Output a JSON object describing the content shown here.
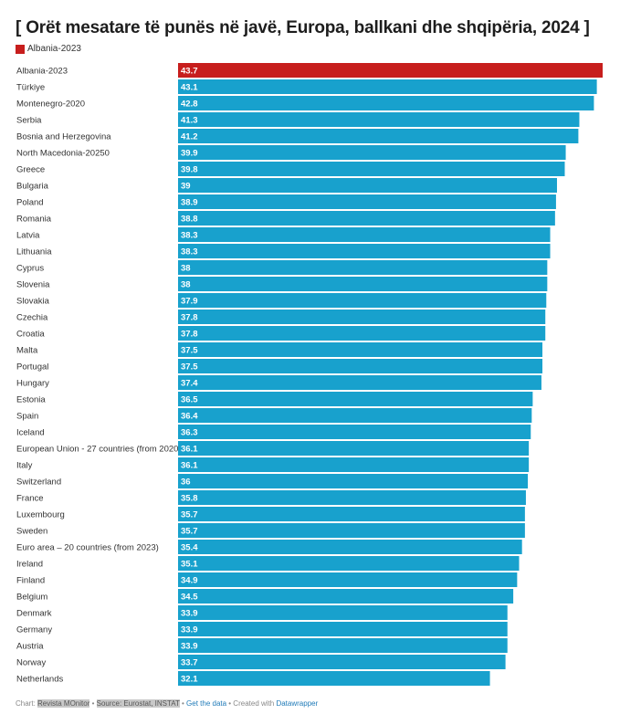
{
  "title": "[ Orët mesatare të punës në javë, Europa, ballkani dhe shqipëria, 2024 ]",
  "legend": [
    {
      "label": "Albania-2023",
      "color": "#c71e1d"
    }
  ],
  "colors": {
    "highlight": "#c71e1d",
    "default": "#18a1cd"
  },
  "chart_data": {
    "type": "bar",
    "orientation": "horizontal",
    "title": "[ Orët mesatare të punës në javë, Europa, ballkani dhe shqipëria, 2024 ]",
    "xlim": [
      0,
      43.7
    ],
    "grid": false,
    "legend_position": "top-left",
    "highlight": "Albania-2023",
    "categories": [
      "Albania-2023",
      "Türkiye",
      "Montenegro-2020",
      "Serbia",
      "Bosnia and Herzegovina",
      "North Macedonia-20250",
      "Greece",
      "Bulgaria",
      "Poland",
      "Romania",
      "Latvia",
      "Lithuania",
      "Cyprus",
      "Slovenia",
      "Slovakia",
      "Czechia",
      "Croatia",
      "Malta",
      "Portugal",
      "Hungary",
      "Estonia",
      "Spain",
      "Iceland",
      "European Union - 27 countries (from 2020)",
      "Italy",
      "Switzerland",
      "France",
      "Luxembourg",
      "Sweden",
      "Euro area – 20 countries (from 2023)",
      "Ireland",
      "Finland",
      "Belgium",
      "Denmark",
      "Germany",
      "Austria",
      "Norway",
      "Netherlands"
    ],
    "values": [
      43.7,
      43.1,
      42.8,
      41.3,
      41.2,
      39.9,
      39.8,
      39,
      38.9,
      38.8,
      38.3,
      38.3,
      38,
      38,
      37.9,
      37.8,
      37.8,
      37.5,
      37.5,
      37.4,
      36.5,
      36.4,
      36.3,
      36.1,
      36.1,
      36,
      35.8,
      35.7,
      35.7,
      35.4,
      35.1,
      34.9,
      34.5,
      33.9,
      33.9,
      33.9,
      33.7,
      32.1
    ]
  },
  "footer": {
    "chart_prefix": "Chart: ",
    "chart_by": "Revista MOnitor",
    "sep1": " • ",
    "source": "Source: Eurostat, INSTAT",
    "sep2": " • ",
    "get_data": "Get the data",
    "created": " • Created with ",
    "datawrapper": "Datawrapper"
  }
}
